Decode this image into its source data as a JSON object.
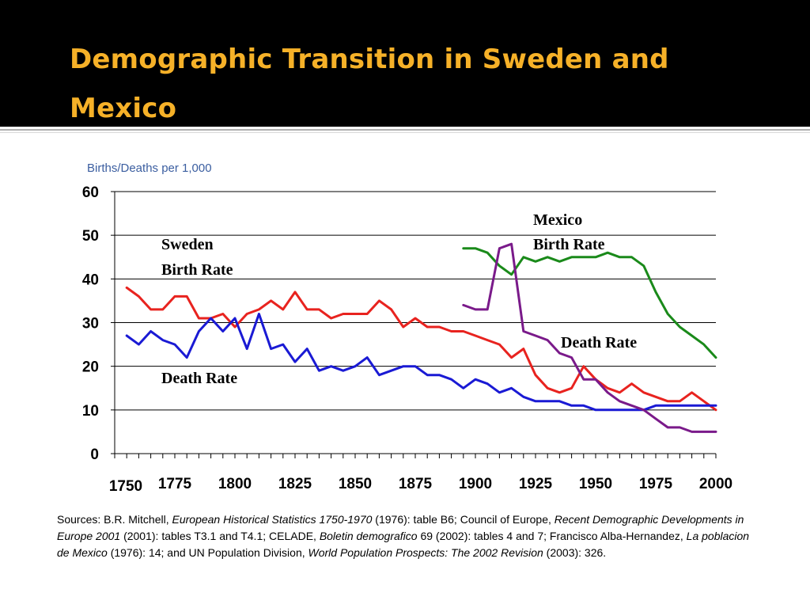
{
  "title": "Demographic Transition in Sweden and Mexico",
  "colors": {
    "title_text": "#f6b128",
    "title_bg": "#000000",
    "sweden_birth": "#e8231f",
    "sweden_death": "#1a1ad4",
    "mexico_birth": "#1a8a1a",
    "mexico_death": "#7a1a8a"
  },
  "chart_data": {
    "type": "line",
    "ylabel": "Births/Deaths per 1,000",
    "xlabel": "",
    "ylim": [
      0,
      60
    ],
    "xlim": [
      1750,
      2000
    ],
    "y_ticks": [
      "0",
      "10",
      "20",
      "30",
      "40",
      "50",
      "60"
    ],
    "x_ticks": [
      "1750",
      "1775",
      "1800",
      "1825",
      "1850",
      "1875",
      "1900",
      "1925",
      "1950",
      "1975",
      "2000"
    ],
    "grid": true,
    "series": [
      {
        "key": "sweden_birth",
        "x": [
          1755,
          1760,
          1765,
          1770,
          1775,
          1780,
          1785,
          1790,
          1795,
          1800,
          1805,
          1810,
          1815,
          1820,
          1825,
          1830,
          1835,
          1840,
          1845,
          1850,
          1855,
          1860,
          1865,
          1870,
          1875,
          1880,
          1885,
          1890,
          1895,
          1900,
          1905,
          1910,
          1915,
          1920,
          1925,
          1930,
          1935,
          1940,
          1945,
          1950,
          1955,
          1960,
          1965,
          1970,
          1975,
          1980,
          1985,
          1990,
          1995,
          2000
        ],
        "y": [
          38,
          36,
          33,
          33,
          36,
          36,
          31,
          31,
          32,
          29,
          32,
          33,
          35,
          33,
          37,
          33,
          33,
          31,
          32,
          32,
          32,
          35,
          33,
          29,
          31,
          29,
          29,
          28,
          28,
          27,
          26,
          25,
          22,
          24,
          18,
          15,
          14,
          15,
          20,
          17,
          15,
          14,
          16,
          14,
          13,
          12,
          12,
          14,
          12,
          10
        ]
      },
      {
        "key": "sweden_death",
        "x": [
          1755,
          1760,
          1765,
          1770,
          1775,
          1780,
          1785,
          1790,
          1795,
          1800,
          1805,
          1810,
          1815,
          1820,
          1825,
          1830,
          1835,
          1840,
          1845,
          1850,
          1855,
          1860,
          1865,
          1870,
          1875,
          1880,
          1885,
          1890,
          1895,
          1900,
          1905,
          1910,
          1915,
          1920,
          1925,
          1930,
          1935,
          1940,
          1945,
          1950,
          1955,
          1960,
          1965,
          1970,
          1975,
          1980,
          1985,
          1990,
          1995,
          2000
        ],
        "y": [
          27,
          25,
          28,
          26,
          25,
          22,
          28,
          31,
          28,
          31,
          24,
          32,
          24,
          25,
          21,
          24,
          19,
          20,
          19,
          20,
          22,
          18,
          19,
          20,
          20,
          18,
          18,
          17,
          15,
          17,
          16,
          14,
          15,
          13,
          12,
          12,
          12,
          11,
          11,
          10,
          10,
          10,
          10,
          10,
          11,
          11,
          11,
          11,
          11,
          11
        ]
      },
      {
        "key": "mexico_birth",
        "x": [
          1895,
          1900,
          1905,
          1910,
          1915,
          1920,
          1925,
          1930,
          1935,
          1940,
          1945,
          1950,
          1955,
          1960,
          1965,
          1970,
          1975,
          1980,
          1985,
          1990,
          1995,
          2000
        ],
        "y": [
          47,
          47,
          46,
          43,
          41,
          45,
          44,
          45,
          44,
          45,
          45,
          45,
          46,
          45,
          45,
          43,
          37,
          32,
          29,
          27,
          25,
          22
        ]
      },
      {
        "key": "mexico_death",
        "x": [
          1895,
          1900,
          1905,
          1910,
          1915,
          1920,
          1925,
          1930,
          1935,
          1940,
          1945,
          1950,
          1955,
          1960,
          1965,
          1970,
          1975,
          1980,
          1985,
          1990,
          1995,
          2000
        ],
        "y": [
          34,
          33,
          33,
          47,
          48,
          28,
          27,
          26,
          23,
          22,
          17,
          17,
          14,
          12,
          11,
          10,
          8,
          6,
          6,
          5,
          5,
          5
        ]
      }
    ],
    "annotations": {
      "sweden_birth_line1": "Sweden",
      "sweden_birth_line2": "Birth Rate",
      "sweden_death": "Death Rate",
      "mexico_birth_line1": "Mexico",
      "mexico_birth_line2": "Birth Rate",
      "mexico_death": "Death Rate"
    }
  },
  "sources": {
    "p1": "Sources: B.R. Mitchell, ",
    "i1": "European Historical Statistics 1750-1970",
    "p2": " (1976): table B6; Council of Europe, ",
    "i2": "Recent Demographic Developments in Europe 2001",
    "p3": " (2001): tables T3.1 and T4.1; CELADE, ",
    "i3": "Boletin demografico",
    "p4": " 69 (2002): tables 4 and 7; Francisco Alba-Hernandez, ",
    "i4": "La poblacion de Mexico",
    "p5": " (1976): 14; and UN Population Division, ",
    "i5": "World Population Prospects: The 2002 Revision",
    "p6": " (2003): 326."
  }
}
